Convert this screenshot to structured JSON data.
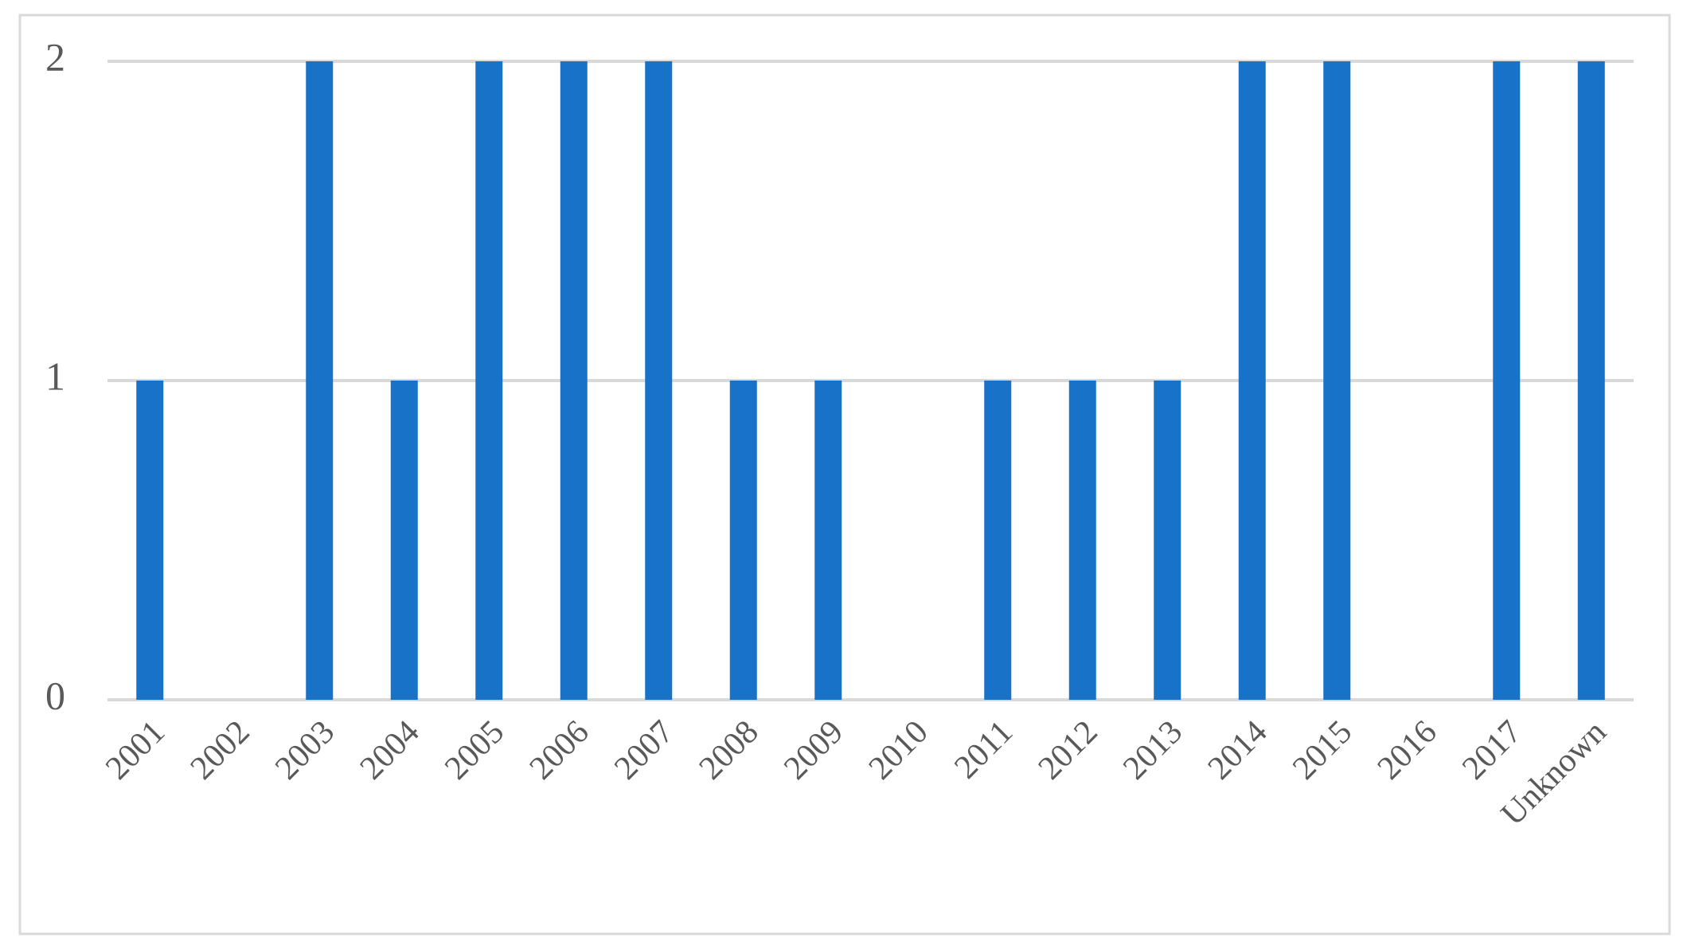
{
  "chart_data": {
    "type": "bar",
    "categories": [
      "2001",
      "2002",
      "2003",
      "2004",
      "2005",
      "2006",
      "2007",
      "2008",
      "2009",
      "2010",
      "2011",
      "2012",
      "2013",
      "2014",
      "2015",
      "2016",
      "2017",
      "Unknown"
    ],
    "values": [
      1,
      0,
      2,
      1,
      2,
      2,
      2,
      1,
      1,
      0,
      1,
      1,
      1,
      2,
      2,
      0,
      2,
      2
    ],
    "color": "#1872c8",
    "ylim": [
      0,
      2
    ],
    "yticks": [
      0,
      1,
      2
    ],
    "grid": true
  }
}
